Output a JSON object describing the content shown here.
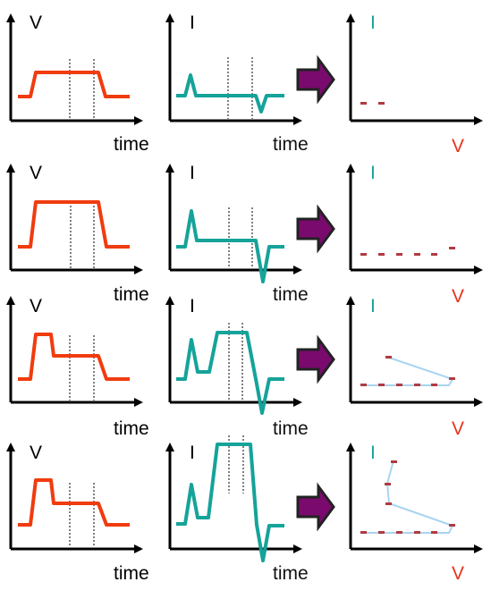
{
  "labels": {
    "voltage_axis": "V",
    "current_axis": "I",
    "time_axis": "time",
    "iv_current_axis": "I",
    "iv_voltage_axis": "V"
  },
  "colors": {
    "voltage_trace": "#f03c0f",
    "current_trace": "#15a39a",
    "iv_point": "#b13a41",
    "iv_line": "#a9d4f0",
    "arrow_fill": "#7a0a6e",
    "axis": "#000000",
    "time_label_current": "#111111",
    "iv_i_label": "#15a39a",
    "iv_v_label": "#e8331c"
  },
  "icons": {
    "arrow": "arrow-right-icon"
  },
  "rows": [
    {
      "name": "row-1"
    },
    {
      "name": "row-2"
    },
    {
      "name": "row-3"
    },
    {
      "name": "row-4"
    }
  ]
}
